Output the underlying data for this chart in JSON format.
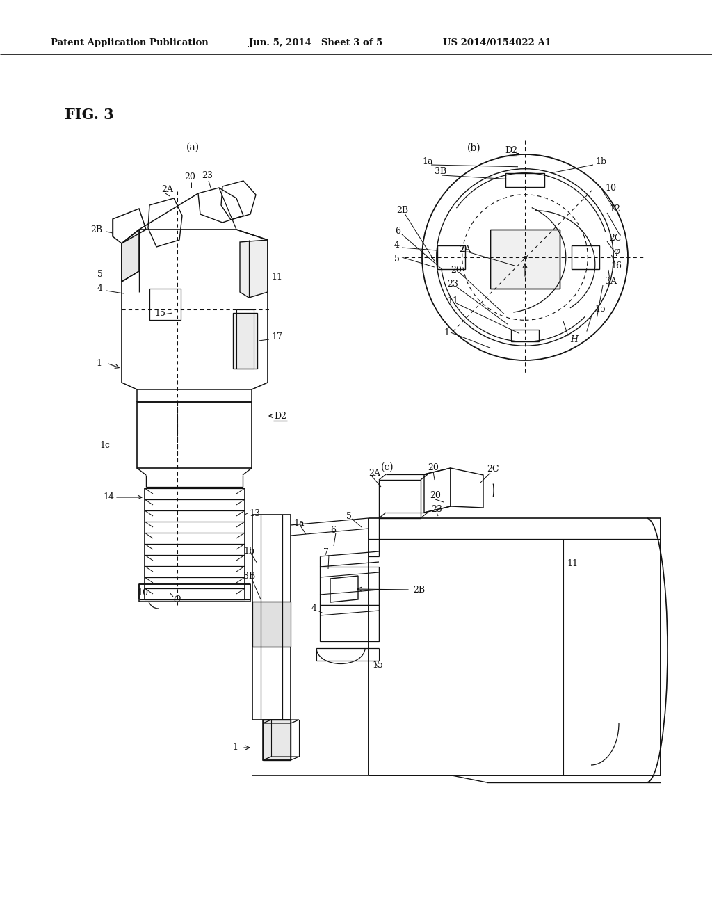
{
  "bg_color": "#ffffff",
  "header_left": "Patent Application Publication",
  "header_mid": "Jun. 5, 2014   Sheet 3 of 5",
  "header_right": "US 2014/0154022 A1",
  "line_color": "#111111",
  "text_color": "#111111",
  "fig_label": "FIG. 3"
}
